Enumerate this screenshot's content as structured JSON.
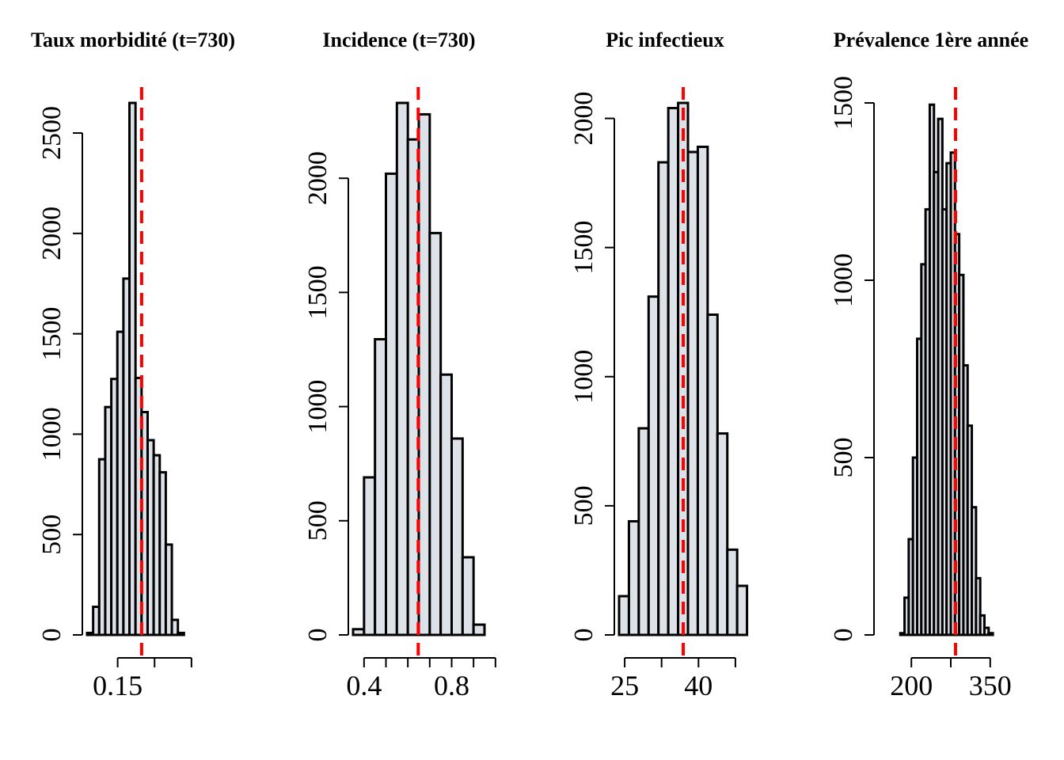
{
  "style": {
    "bar_fill": "#dde1e8",
    "bar_stroke": "#000000",
    "mean_line": "#ff0000"
  },
  "chart_data": [
    {
      "type": "bar",
      "title": "Taux morbidité (t=730)",
      "xlabel": "",
      "ylabel": "",
      "ylim": [
        0,
        2650
      ],
      "yticks": [
        0,
        500,
        1000,
        1500,
        2000,
        2500
      ],
      "xticks": [
        0.15,
        0.2,
        0.25
      ],
      "xtick_labels": [
        "0.15",
        "",
        ""
      ],
      "xlim": [
        0.1086,
        0.2866
      ],
      "bin_width": 0.0082,
      "bin_start": 0.1086,
      "values": [
        10,
        140,
        875,
        1135,
        1275,
        1510,
        1775,
        2650,
        1280,
        1110,
        970,
        895,
        810,
        450,
        75,
        10
      ],
      "mean_line": 0.1825
    },
    {
      "type": "bar",
      "title": "Incidence (t=730)",
      "xlabel": "",
      "ylabel": "",
      "ylim": [
        0,
        2330
      ],
      "yticks": [
        0,
        500,
        1000,
        1500,
        2000
      ],
      "xticks": [
        0.4,
        0.5,
        0.6,
        0.7,
        0.8,
        0.9,
        1.0
      ],
      "xtick_labels": [
        "0.4",
        "",
        "",
        "",
        "0.8",
        "",
        ""
      ],
      "xlim": [
        0.35,
        0.95
      ],
      "bin_width": 0.05,
      "bin_start": 0.35,
      "values": [
        25,
        690,
        1295,
        2020,
        2330,
        2170,
        2280,
        1760,
        1140,
        860,
        340,
        45
      ],
      "mean_line": 0.6475
    },
    {
      "type": "bar",
      "title": "Pic infectieux",
      "xlabel": "",
      "ylabel": "",
      "ylim": [
        0,
        2060
      ],
      "yticks": [
        0,
        500,
        1000,
        1500,
        2000
      ],
      "xticks": [
        25,
        32.5,
        40,
        47.5
      ],
      "xtick_labels": [
        "25",
        "",
        "40",
        ""
      ],
      "xlim": [
        23.86,
        50.57
      ],
      "bin_width": 2.0,
      "bin_start": 23.86,
      "values": [
        150,
        440,
        800,
        1310,
        1830,
        2040,
        2060,
        1870,
        1890,
        1240,
        780,
        330,
        190
      ],
      "mean_line": 36.9
    },
    {
      "type": "bar",
      "title": "Prévalence 1ère année",
      "xlabel": "",
      "ylabel": "",
      "ylim": [
        0,
        1500
      ],
      "yticks": [
        0,
        500,
        1000,
        1500
      ],
      "xticks": [
        200,
        275,
        350
      ],
      "xtick_labels": [
        "200",
        "",
        "350"
      ],
      "xlim": [
        150,
        400
      ],
      "bin_width": 8,
      "bin_start": 179,
      "values": [
        5,
        105,
        270,
        500,
        835,
        1045,
        1200,
        1495,
        1305,
        1455,
        1200,
        1330,
        1360,
        1130,
        1015,
        760,
        590,
        360,
        160,
        55,
        20,
        5
      ],
      "mean_line": 284
    }
  ]
}
